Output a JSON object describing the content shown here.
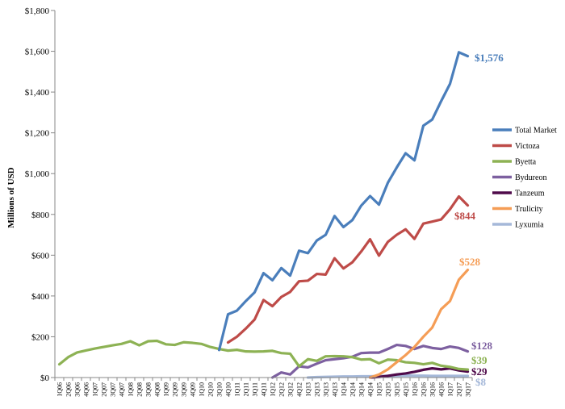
{
  "chart_data": {
    "type": "line",
    "ylabel": "Millions of USD",
    "ylim": [
      0,
      1800
    ],
    "yticks": [
      0,
      200,
      400,
      600,
      800,
      1000,
      1200,
      1400,
      1600,
      1800
    ],
    "ytick_labels": [
      "$0",
      "$200",
      "$400",
      "$600",
      "$800",
      "$1,000",
      "$1,200",
      "$1,400",
      "$1,600",
      "$1,800"
    ],
    "grid": false,
    "legend_position": "right",
    "x": [
      "1Q06",
      "2Q06",
      "3Q06",
      "4Q06",
      "1Q07",
      "2Q07",
      "3Q07",
      "4Q07",
      "1Q08",
      "2Q08",
      "3Q08",
      "4Q08",
      "1Q09",
      "2Q09",
      "3Q09",
      "4Q09",
      "1Q10",
      "2Q10",
      "3Q10",
      "4Q10",
      "1Q11",
      "2Q11",
      "3Q11",
      "4Q11",
      "1Q12",
      "2Q12",
      "3Q12",
      "4Q12",
      "1Q13",
      "2Q13",
      "3Q13",
      "4Q13",
      "1Q14",
      "2Q14",
      "3Q14",
      "4Q14",
      "1Q15",
      "2Q15",
      "3Q15",
      "4Q15",
      "1Q16",
      "2Q16",
      "3Q16",
      "4Q16",
      "1Q17",
      "2Q17",
      "3Q17"
    ],
    "series": [
      {
        "name": "Total Market",
        "color": "#4a7ebb",
        "values": [
          null,
          null,
          null,
          null,
          null,
          null,
          null,
          null,
          null,
          null,
          null,
          null,
          null,
          null,
          null,
          null,
          null,
          null,
          135,
          310,
          328,
          375,
          418,
          512,
          477,
          537,
          500,
          622,
          610,
          672,
          700,
          792,
          738,
          772,
          843,
          890,
          848,
          955,
          1030,
          1100,
          1065,
          1235,
          1265,
          1355,
          1440,
          1595,
          1576
        ]
      },
      {
        "name": "Victoza",
        "color": "#be4b48",
        "values": [
          null,
          null,
          null,
          null,
          null,
          null,
          null,
          null,
          null,
          null,
          null,
          null,
          null,
          null,
          null,
          null,
          null,
          null,
          null,
          172,
          200,
          240,
          285,
          380,
          350,
          395,
          420,
          472,
          475,
          508,
          505,
          585,
          535,
          565,
          618,
          678,
          598,
          665,
          700,
          727,
          680,
          755,
          765,
          775,
          825,
          888,
          844
        ]
      },
      {
        "name": "Byetta",
        "color": "#8db254",
        "values": [
          65,
          100,
          123,
          133,
          142,
          150,
          158,
          165,
          178,
          158,
          178,
          180,
          163,
          160,
          173,
          170,
          165,
          150,
          140,
          132,
          136,
          128,
          127,
          128,
          131,
          120,
          117,
          55,
          90,
          82,
          104,
          105,
          104,
          100,
          88,
          90,
          70,
          88,
          85,
          75,
          72,
          65,
          72,
          58,
          52,
          42,
          39
        ]
      },
      {
        "name": "Bydureon",
        "color": "#7d60a0",
        "values": [
          null,
          null,
          null,
          null,
          null,
          null,
          null,
          null,
          null,
          null,
          null,
          null,
          null,
          null,
          null,
          null,
          null,
          null,
          null,
          null,
          null,
          null,
          null,
          null,
          0,
          25,
          15,
          55,
          50,
          68,
          85,
          90,
          95,
          102,
          120,
          122,
          122,
          140,
          160,
          155,
          140,
          155,
          145,
          140,
          152,
          145,
          128
        ]
      },
      {
        "name": "Tanzeum",
        "color": "#4f0a4a",
        "values": [
          null,
          null,
          null,
          null,
          null,
          null,
          null,
          null,
          null,
          null,
          null,
          null,
          null,
          null,
          null,
          null,
          null,
          null,
          null,
          null,
          null,
          null,
          null,
          null,
          null,
          null,
          null,
          null,
          null,
          null,
          null,
          null,
          null,
          null,
          null,
          0,
          3,
          8,
          15,
          20,
          28,
          38,
          45,
          40,
          45,
          35,
          29
        ]
      },
      {
        "name": "Trulicity",
        "color": "#f59d56",
        "values": [
          null,
          null,
          null,
          null,
          null,
          null,
          null,
          null,
          null,
          null,
          null,
          null,
          null,
          null,
          null,
          null,
          null,
          null,
          null,
          null,
          null,
          null,
          null,
          null,
          null,
          null,
          null,
          null,
          null,
          null,
          null,
          null,
          null,
          null,
          null,
          0,
          15,
          40,
          75,
          110,
          150,
          200,
          245,
          335,
          375,
          480,
          528
        ]
      },
      {
        "name": "Lyxumia",
        "color": "#a5b8d9",
        "values": [
          null,
          null,
          null,
          null,
          null,
          null,
          null,
          null,
          null,
          null,
          null,
          null,
          null,
          null,
          null,
          null,
          null,
          null,
          null,
          null,
          null,
          null,
          null,
          null,
          null,
          null,
          null,
          null,
          0,
          2,
          3,
          4,
          5,
          5,
          6,
          6,
          7,
          8,
          9,
          10,
          9,
          9,
          8,
          8,
          8,
          8,
          8
        ]
      }
    ],
    "end_labels": [
      {
        "series": "Total Market",
        "text": "$1,576"
      },
      {
        "series": "Victoza",
        "text": "$844"
      },
      {
        "series": "Trulicity",
        "text": "$528"
      },
      {
        "series": "Bydureon",
        "text": "$128"
      },
      {
        "series": "Byetta",
        "text": "$39"
      },
      {
        "series": "Tanzeum",
        "text": "$29"
      },
      {
        "series": "Lyxumia",
        "text": "$8"
      }
    ]
  }
}
